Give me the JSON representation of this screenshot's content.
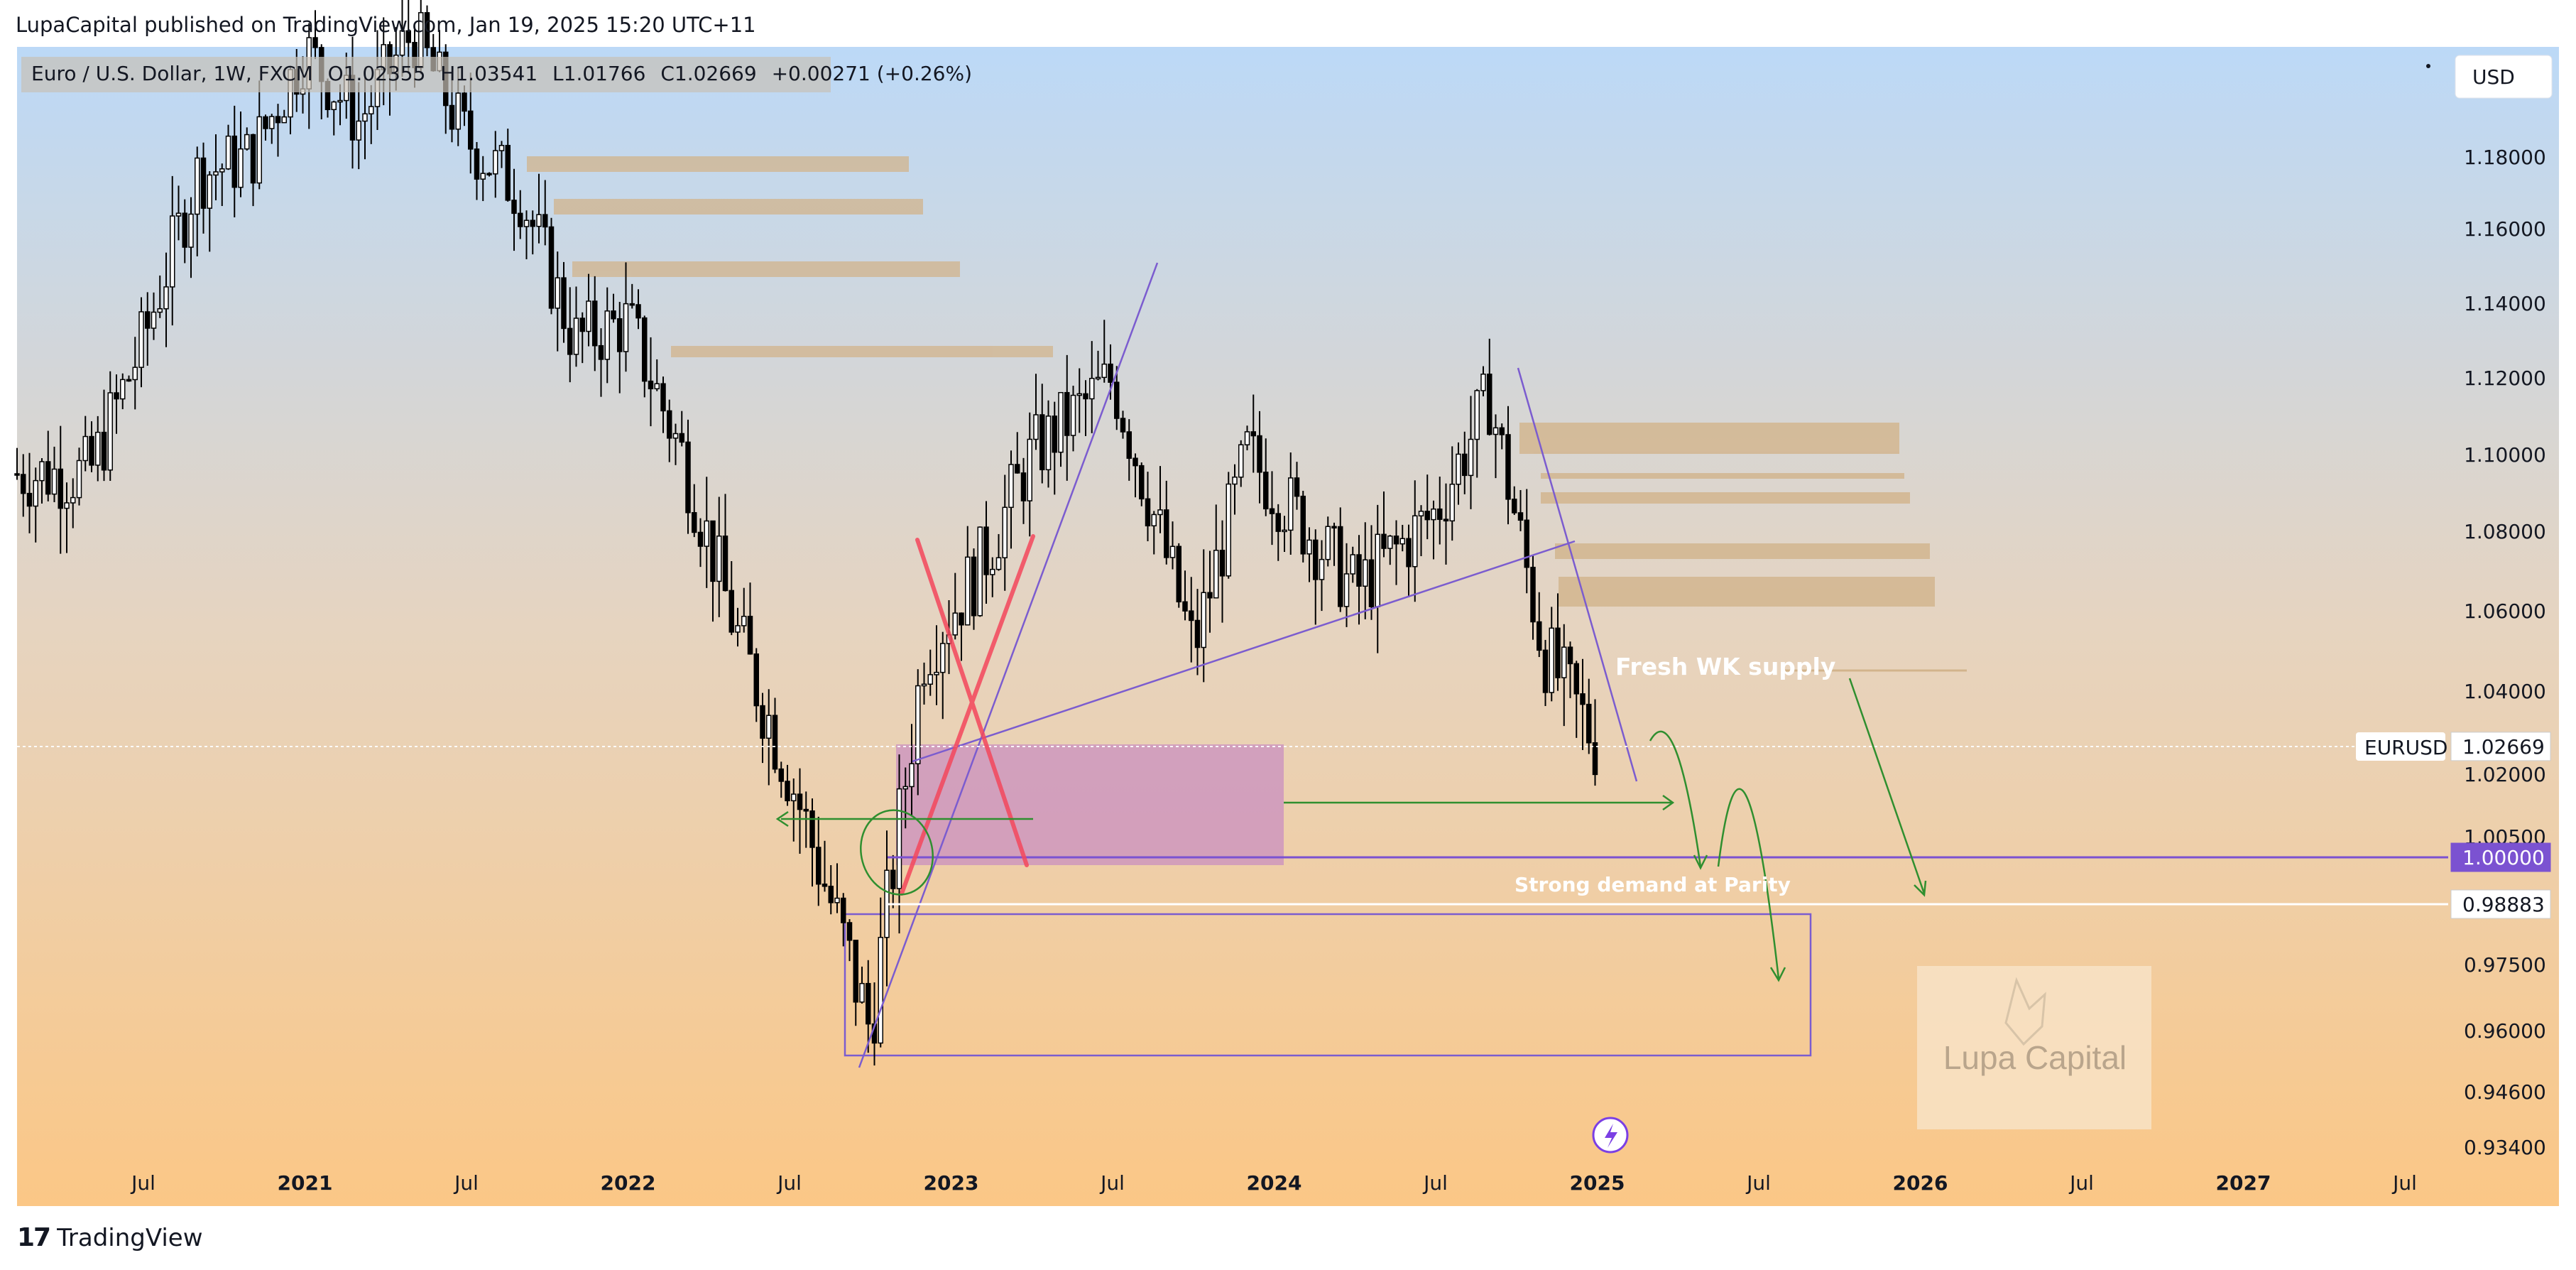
{
  "header": {
    "published": "LupaCapital published on TradingView.com, Jan 19, 2025 15:20 UTC+11"
  },
  "footer": {
    "brand": "TradingView"
  },
  "currency_button": "USD",
  "symbol_tag": "EURUSD",
  "watermark": "Lupa Capital",
  "colors": {
    "bg_top": "#bcd9f7",
    "bg_bottom": "#fbc786",
    "candle": "#000000",
    "supply_zone": "#d2b48c",
    "demand_zone": "#c98fc0",
    "trendline": "#7b5ccf",
    "parity_line": "#7b52d1",
    "arrows": "#2f8f2f",
    "x_mark": "#f4475c"
  },
  "chart_data": {
    "type": "candlestick",
    "symbol_info": {
      "title": "Euro / U.S. Dollar, 1W, FXCM",
      "open": "O1.02355",
      "high": "H1.03541",
      "low": "L1.01766",
      "close": "C1.02669",
      "change": "+0.00271 (+0.26%)"
    },
    "x_ticks": [
      "Jul",
      "2021",
      "Jul",
      "2022",
      "Jul",
      "2023",
      "Jul",
      "2024",
      "Jul",
      "2025",
      "Jul",
      "2026",
      "Jul",
      "2027",
      "Jul"
    ],
    "y_ticks": [
      "1.18000",
      "1.16000",
      "1.14000",
      "1.12000",
      "1.10000",
      "1.08000",
      "1.06000",
      "1.04000",
      "1.02000",
      "1.00500",
      "0.97500",
      "0.96000",
      "0.94600",
      "0.93400"
    ],
    "y_tick_values": [
      1.18,
      1.16,
      1.14,
      1.12,
      1.1,
      1.08,
      1.06,
      1.04,
      1.02,
      1.005,
      0.975,
      0.96,
      0.946,
      0.934
    ],
    "price_labels": [
      {
        "text": "1.02669",
        "value": 1.02669
      },
      {
        "text": "1.00000",
        "value": 1.0
      },
      {
        "text": "0.98883",
        "value": 0.98883
      }
    ],
    "close_path": [
      {
        "t": "2020-05",
        "v": 1.095
      },
      {
        "t": "2020-07",
        "v": 1.13
      },
      {
        "t": "2020-09",
        "v": 1.175
      },
      {
        "t": "2020-11",
        "v": 1.18
      },
      {
        "t": "2021-01",
        "v": 1.21
      },
      {
        "t": "2021-03",
        "v": 1.19
      },
      {
        "t": "2021-05",
        "v": 1.215
      },
      {
        "t": "2021-07",
        "v": 1.185
      },
      {
        "t": "2021-09",
        "v": 1.17
      },
      {
        "t": "2021-11",
        "v": 1.13
      },
      {
        "t": "2022-01",
        "v": 1.135
      },
      {
        "t": "2022-03",
        "v": 1.1
      },
      {
        "t": "2022-05",
        "v": 1.055
      },
      {
        "t": "2022-07",
        "v": 1.02
      },
      {
        "t": "2022-09",
        "v": 0.98
      },
      {
        "t": "2022-10",
        "v": 0.96
      },
      {
        "t": "2022-12",
        "v": 1.05
      },
      {
        "t": "2023-02",
        "v": 1.07
      },
      {
        "t": "2023-04",
        "v": 1.1
      },
      {
        "t": "2023-07",
        "v": 1.12
      },
      {
        "t": "2023-10",
        "v": 1.05
      },
      {
        "t": "2023-12",
        "v": 1.1
      },
      {
        "t": "2024-04",
        "v": 1.065
      },
      {
        "t": "2024-07",
        "v": 1.085
      },
      {
        "t": "2024-09",
        "v": 1.115
      },
      {
        "t": "2024-11",
        "v": 1.05
      },
      {
        "t": "2025-01",
        "v": 1.027
      }
    ],
    "annotations": {
      "fresh_supply": "Fresh WK supply",
      "parity_demand": "Strong demand at Parity"
    }
  }
}
